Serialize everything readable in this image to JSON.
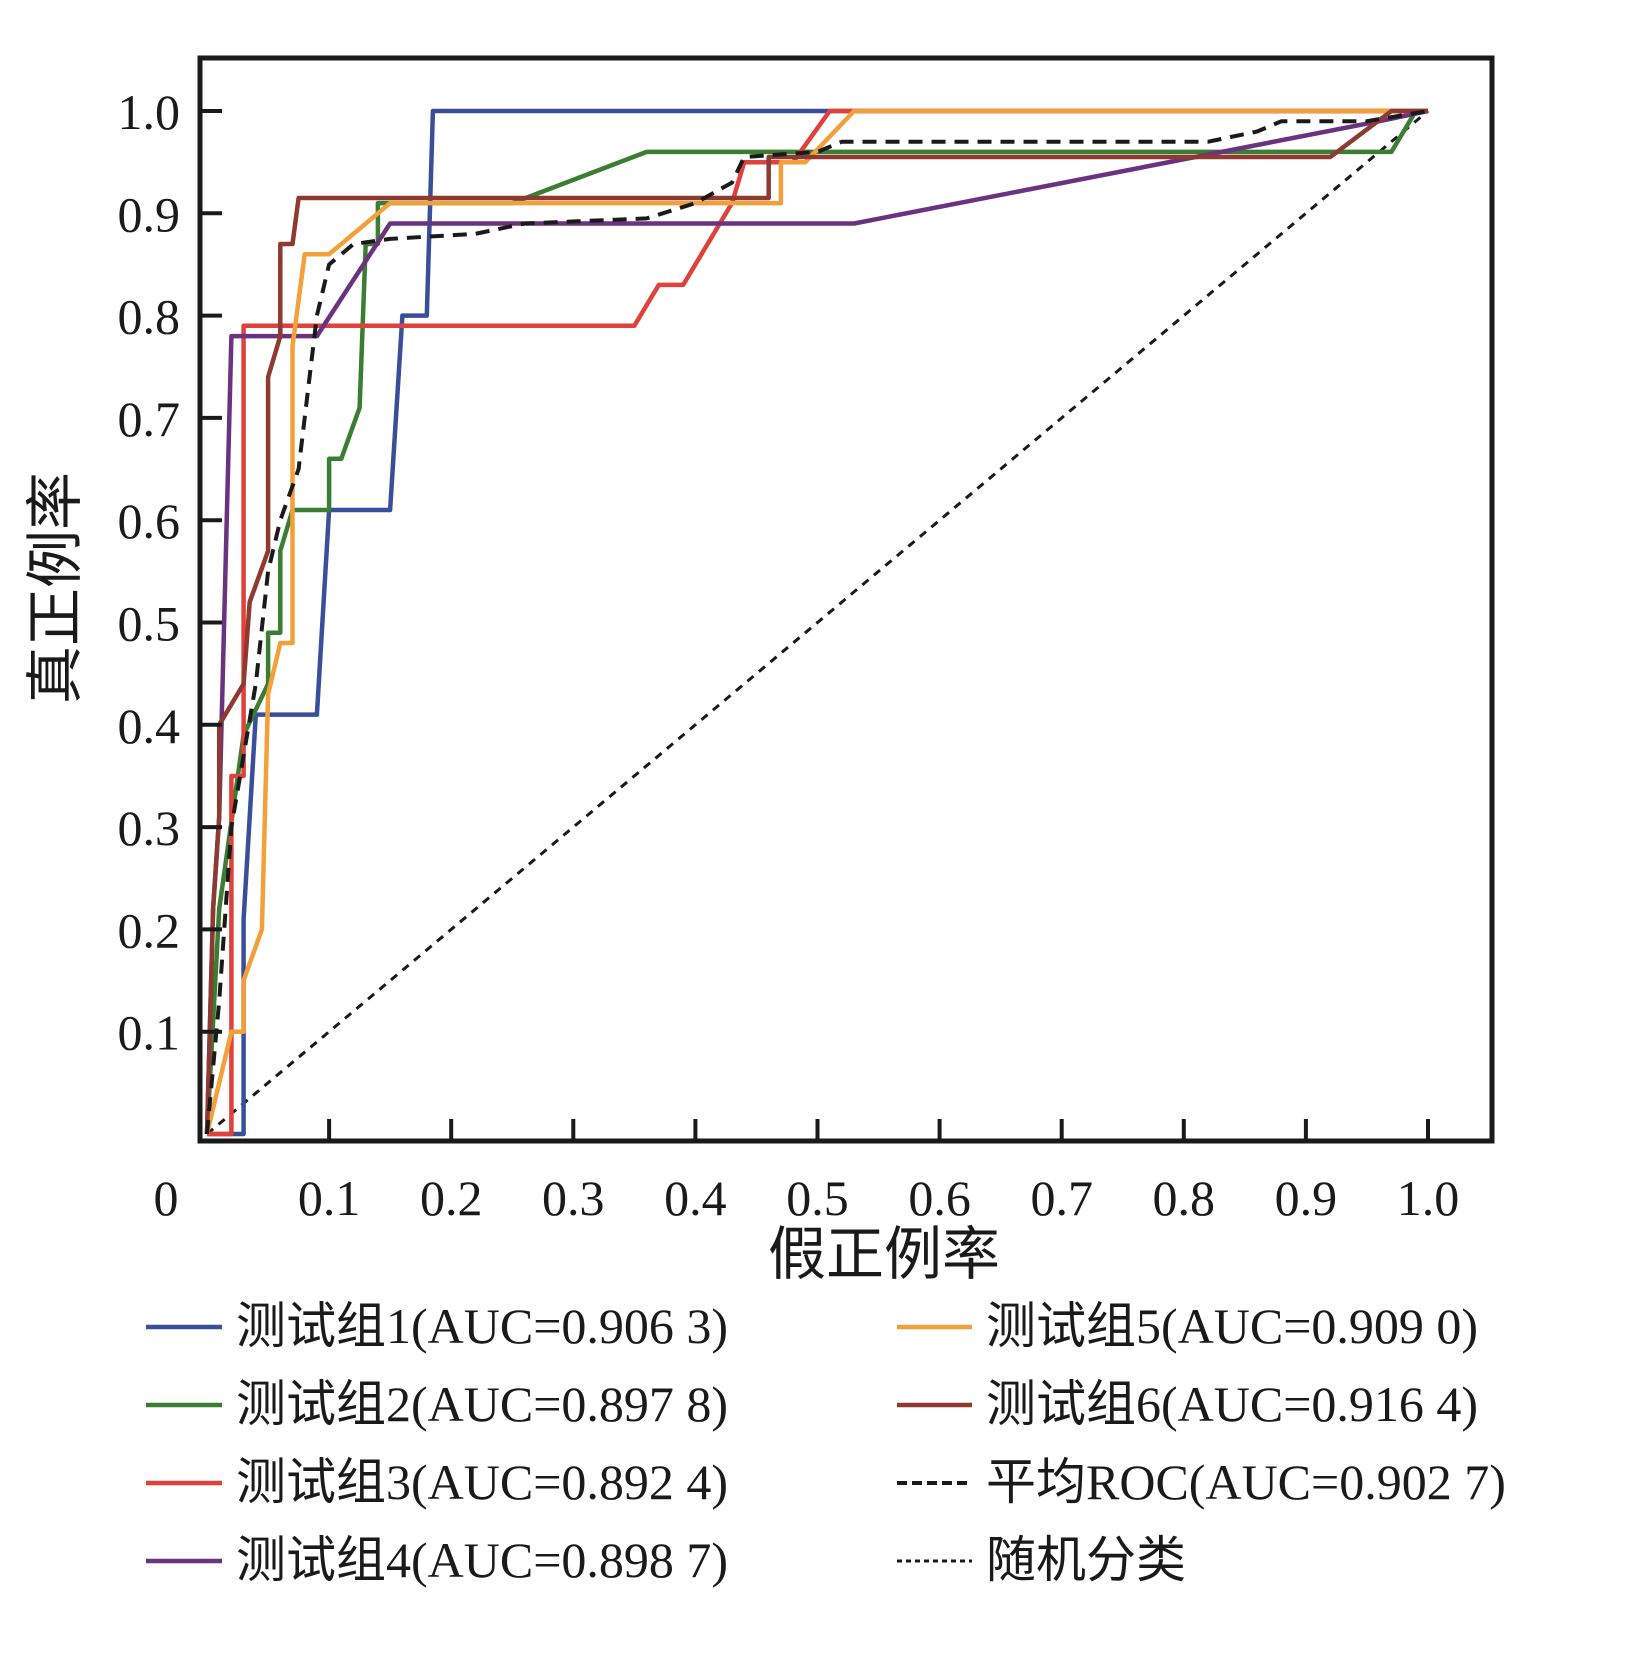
{
  "chart_data": {
    "type": "line",
    "title": "",
    "xlabel": "假正例率",
    "ylabel": "真正例率",
    "xlim": [
      -0.01,
      1.05
    ],
    "ylim": [
      -0.01,
      1.05
    ],
    "x_ticks": [
      0,
      0.1,
      0.2,
      0.3,
      0.4,
      0.5,
      0.6,
      0.7,
      0.8,
      0.9,
      1.0
    ],
    "x_tick_labels": [
      "0",
      "0.1",
      "0.2",
      "0.3",
      "0.4",
      "0.5",
      "0.6",
      "0.7",
      "0.8",
      "0.9",
      "1.0"
    ],
    "y_ticks": [
      0.1,
      0.2,
      0.3,
      0.4,
      0.5,
      0.6,
      0.7,
      0.8,
      0.9,
      1.0
    ],
    "y_tick_labels": [
      "0.1",
      "0.2",
      "0.3",
      "0.4",
      "0.5",
      "0.6",
      "0.7",
      "0.8",
      "0.9",
      "1.0"
    ],
    "grid": false,
    "legend_position": "bottom",
    "series": [
      {
        "name": "测试组1(AUC=0.906 3)",
        "color": "#3a4f9a",
        "dash": "solid",
        "points": [
          [
            0,
            0
          ],
          [
            0.03,
            0
          ],
          [
            0.03,
            0.21
          ],
          [
            0.04,
            0.41
          ],
          [
            0.09,
            0.41
          ],
          [
            0.1,
            0.61
          ],
          [
            0.15,
            0.61
          ],
          [
            0.16,
            0.8
          ],
          [
            0.18,
            0.8
          ],
          [
            0.185,
            1.0
          ],
          [
            0.52,
            1.0
          ],
          [
            1.0,
            1.0
          ]
        ]
      },
      {
        "name": "测试组2(AUC=0.897 8)",
        "color": "#3b7d32",
        "dash": "solid",
        "points": [
          [
            0,
            0
          ],
          [
            0.01,
            0.22
          ],
          [
            0.03,
            0.39
          ],
          [
            0.05,
            0.44
          ],
          [
            0.05,
            0.49
          ],
          [
            0.06,
            0.49
          ],
          [
            0.06,
            0.57
          ],
          [
            0.07,
            0.61
          ],
          [
            0.1,
            0.61
          ],
          [
            0.1,
            0.66
          ],
          [
            0.11,
            0.66
          ],
          [
            0.125,
            0.71
          ],
          [
            0.13,
            0.87
          ],
          [
            0.14,
            0.87
          ],
          [
            0.14,
            0.91
          ],
          [
            0.25,
            0.91
          ],
          [
            0.36,
            0.96
          ],
          [
            0.96,
            0.96
          ],
          [
            0.97,
            0.96
          ],
          [
            0.99,
            1.0
          ],
          [
            1.0,
            1.0
          ]
        ]
      },
      {
        "name": "测试组3(AUC=0.892 4)",
        "color": "#e0413a",
        "dash": "solid",
        "points": [
          [
            0,
            0
          ],
          [
            0.02,
            0
          ],
          [
            0.02,
            0.35
          ],
          [
            0.03,
            0.35
          ],
          [
            0.03,
            0.79
          ],
          [
            0.35,
            0.79
          ],
          [
            0.37,
            0.83
          ],
          [
            0.39,
            0.83
          ],
          [
            0.43,
            0.91
          ],
          [
            0.44,
            0.95
          ],
          [
            0.48,
            0.95
          ],
          [
            0.51,
            1.0
          ],
          [
            1.0,
            1.0
          ]
        ]
      },
      {
        "name": "测试组4(AUC=0.898 7)",
        "color": "#6b3280",
        "dash": "solid",
        "points": [
          [
            0,
            0
          ],
          [
            0.005,
            0.22
          ],
          [
            0.01,
            0.31
          ],
          [
            0.02,
            0.78
          ],
          [
            0.09,
            0.78
          ],
          [
            0.15,
            0.89
          ],
          [
            0.53,
            0.89
          ],
          [
            0.96,
            0.99
          ],
          [
            1.0,
            1.0
          ]
        ]
      },
      {
        "name": "测试组5(AUC=0.909 0)",
        "color": "#f3a03b",
        "dash": "solid",
        "points": [
          [
            0,
            0
          ],
          [
            0.02,
            0.1
          ],
          [
            0.03,
            0.1
          ],
          [
            0.03,
            0.15
          ],
          [
            0.045,
            0.2
          ],
          [
            0.05,
            0.43
          ],
          [
            0.06,
            0.48
          ],
          [
            0.07,
            0.48
          ],
          [
            0.07,
            0.77
          ],
          [
            0.08,
            0.86
          ],
          [
            0.1,
            0.86
          ],
          [
            0.15,
            0.91
          ],
          [
            0.47,
            0.91
          ],
          [
            0.47,
            0.95
          ],
          [
            0.49,
            0.95
          ],
          [
            0.53,
            1.0
          ],
          [
            1.0,
            1.0
          ]
        ]
      },
      {
        "name": "测试组6(AUC=0.916 4)",
        "color": "#8e3a30",
        "dash": "solid",
        "points": [
          [
            0,
            0
          ],
          [
            0.005,
            0.22
          ],
          [
            0.01,
            0.31
          ],
          [
            0.01,
            0.4
          ],
          [
            0.03,
            0.44
          ],
          [
            0.035,
            0.52
          ],
          [
            0.05,
            0.57
          ],
          [
            0.05,
            0.74
          ],
          [
            0.06,
            0.78
          ],
          [
            0.06,
            0.87
          ],
          [
            0.07,
            0.87
          ],
          [
            0.075,
            0.915
          ],
          [
            0.46,
            0.915
          ],
          [
            0.46,
            0.955
          ],
          [
            0.92,
            0.955
          ],
          [
            0.97,
            1.0
          ],
          [
            1.0,
            1.0
          ]
        ]
      },
      {
        "name": "平均ROC(AUC=0.902 7)",
        "color": "#1a1a1a",
        "dash": "dashed",
        "points": [
          [
            0,
            0
          ],
          [
            0.01,
            0.13
          ],
          [
            0.02,
            0.3
          ],
          [
            0.04,
            0.44
          ],
          [
            0.05,
            0.55
          ],
          [
            0.06,
            0.6
          ],
          [
            0.075,
            0.65
          ],
          [
            0.09,
            0.8
          ],
          [
            0.1,
            0.85
          ],
          [
            0.12,
            0.87
          ],
          [
            0.15,
            0.875
          ],
          [
            0.22,
            0.88
          ],
          [
            0.26,
            0.89
          ],
          [
            0.36,
            0.895
          ],
          [
            0.4,
            0.91
          ],
          [
            0.43,
            0.93
          ],
          [
            0.44,
            0.955
          ],
          [
            0.5,
            0.96
          ],
          [
            0.52,
            0.97
          ],
          [
            0.82,
            0.97
          ],
          [
            0.86,
            0.98
          ],
          [
            0.88,
            0.99
          ],
          [
            0.95,
            0.99
          ],
          [
            1.0,
            1.0
          ]
        ]
      },
      {
        "name": "随机分类",
        "color": "#1a1a1a",
        "dash": "dotted",
        "points": [
          [
            0,
            0
          ],
          [
            1.0,
            1.0
          ]
        ]
      }
    ]
  }
}
